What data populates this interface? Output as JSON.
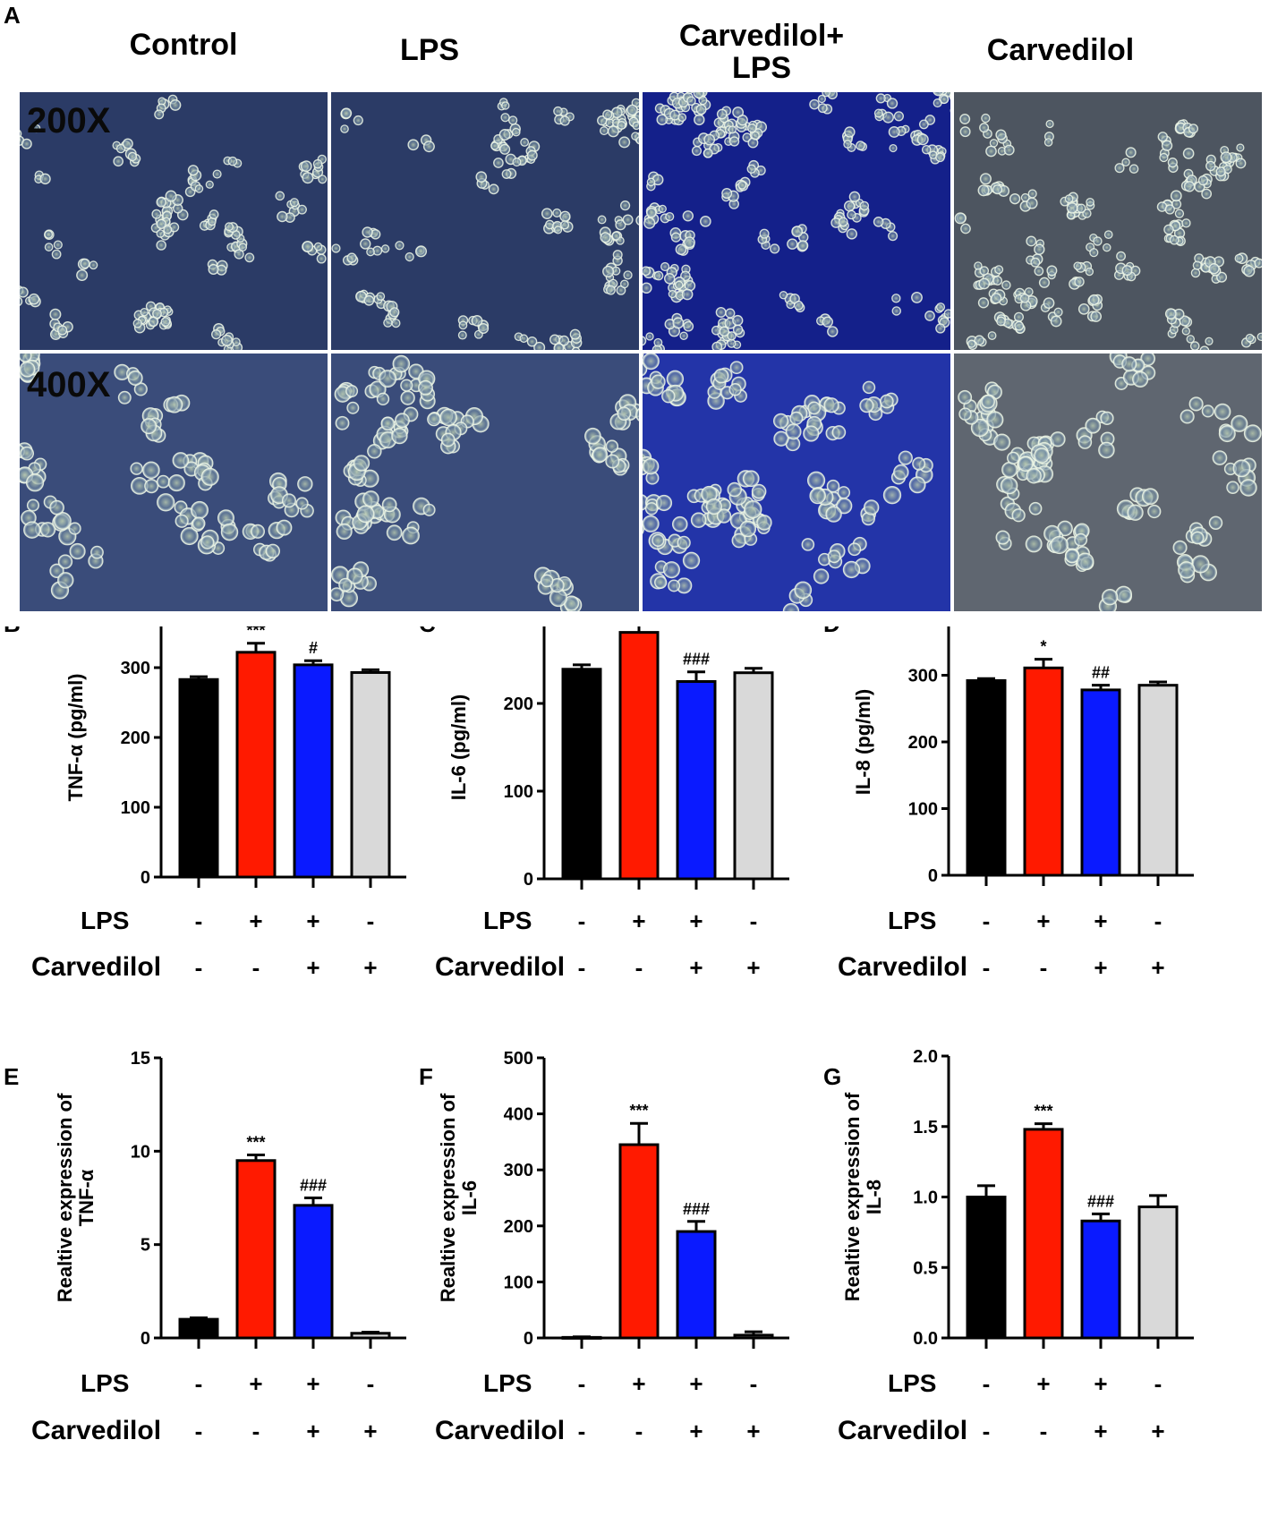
{
  "figure": {
    "panel_a": {
      "letter": "A",
      "columns": [
        "Control",
        "LPS",
        "Carvedilol+\nLPS",
        "Carvedilol"
      ],
      "rows": [
        "200X",
        "400X"
      ]
    },
    "panel_letters": [
      "B",
      "C",
      "D",
      "E",
      "F",
      "G"
    ],
    "treatment_rows": {
      "lps_label": "LPS",
      "carvedilol_label": "Carvedilol",
      "lps_signs": [
        "-",
        "+",
        "+",
        "-"
      ],
      "carvedilol_signs": [
        "-",
        "-",
        "+",
        "+"
      ]
    },
    "colors": {
      "control": "#000000",
      "lps": "#ff1a00",
      "carvedilol_lps": "#0a1aff",
      "carvedilol": "#d9d9d9"
    },
    "micrograph_styles": [
      "blue-phase-contrast",
      "blue-phase-contrast",
      "dark-blue-phase-contrast",
      "grey-phase-contrast"
    ]
  },
  "chart_data": [
    {
      "panel": "B",
      "type": "bar",
      "ylabel": "TNF-α (pg/ml)",
      "ylim": [
        0,
        400
      ],
      "yticks": [
        0,
        100,
        200,
        300,
        400
      ],
      "values": [
        283,
        322,
        304,
        293
      ],
      "errors": [
        4,
        13,
        6,
        4
      ],
      "annotations": [
        "",
        "***",
        "#",
        ""
      ]
    },
    {
      "panel": "C",
      "type": "bar",
      "ylabel": "IL-6 (pg/ml)",
      "ylim": [
        0,
        300
      ],
      "yticks": [
        0,
        100,
        200,
        300
      ],
      "values": [
        239,
        281,
        225,
        235
      ],
      "errors": [
        5,
        14,
        11,
        5
      ],
      "annotations": [
        "",
        "**",
        "###",
        ""
      ]
    },
    {
      "panel": "D",
      "type": "bar",
      "ylabel": "IL-8 (pg/ml)",
      "ylim": [
        0,
        400
      ],
      "yticks": [
        0,
        100,
        200,
        300,
        400
      ],
      "values": [
        292,
        311,
        278,
        285
      ],
      "errors": [
        3,
        13,
        7,
        5
      ],
      "annotations": [
        "",
        "*",
        "##",
        ""
      ]
    },
    {
      "panel": "E",
      "type": "bar",
      "ylabel": "Realtive expression of\nTNF-α",
      "ylim": [
        0,
        15
      ],
      "yticks": [
        0,
        5,
        10,
        15
      ],
      "values": [
        1.0,
        9.5,
        7.1,
        0.25
      ],
      "errors": [
        0.08,
        0.3,
        0.4,
        0.06
      ],
      "annotations": [
        "",
        "***",
        "###",
        ""
      ]
    },
    {
      "panel": "F",
      "type": "bar",
      "ylabel": "Realtive expression of\nIL-6",
      "ylim": [
        0,
        500
      ],
      "yticks": [
        0,
        100,
        200,
        300,
        400,
        500
      ],
      "values": [
        1,
        345,
        190,
        5
      ],
      "errors": [
        1,
        38,
        18,
        6
      ],
      "annotations": [
        "",
        "***",
        "###",
        ""
      ]
    },
    {
      "panel": "G",
      "type": "bar",
      "ylabel": "Realtive expression of\nIL-8",
      "ylim": [
        0,
        2.0
      ],
      "yticks": [
        "0.0",
        "0.5",
        "1.0",
        "1.5",
        "2.0"
      ],
      "values": [
        1.0,
        1.48,
        0.83,
        0.93
      ],
      "errors": [
        0.08,
        0.04,
        0.05,
        0.08
      ],
      "annotations": [
        "",
        "***",
        "###",
        ""
      ]
    }
  ]
}
